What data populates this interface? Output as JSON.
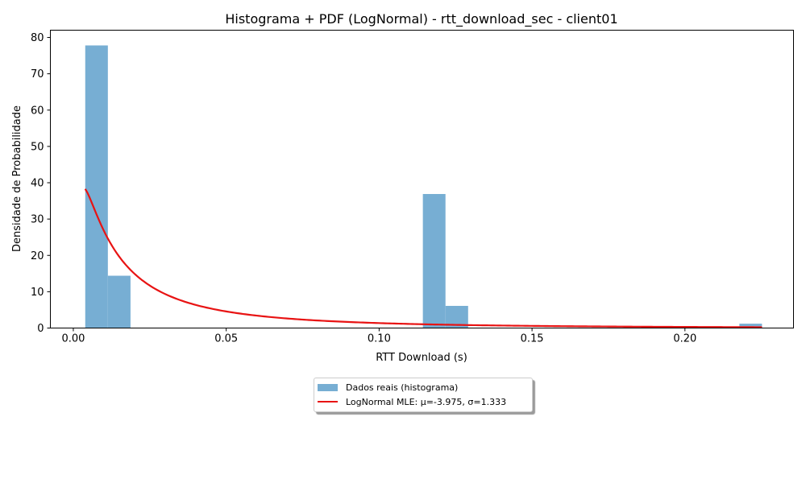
{
  "chart_data": {
    "type": "bar",
    "title": "Histograma + PDF (LogNormal) - rtt_download_sec - client01",
    "xlabel": "RTT Download (s)",
    "ylabel": "Densidade de Probabilidade",
    "xlim": [
      -0.0075,
      0.2355
    ],
    "ylim": [
      0,
      82
    ],
    "x_ticks": [
      0.0,
      0.05,
      0.1,
      0.15,
      0.2
    ],
    "x_tick_labels": [
      "0.00",
      "0.05",
      "0.10",
      "0.15",
      "0.20"
    ],
    "y_ticks": [
      0,
      10,
      20,
      30,
      40,
      50,
      60,
      70,
      80
    ],
    "y_tick_labels": [
      "0",
      "10",
      "20",
      "30",
      "40",
      "50",
      "60",
      "70",
      "80"
    ],
    "grid": false,
    "legend_position": "bottom-center (below axes)",
    "series": [
      {
        "kind": "histogram",
        "name": "Dados reais (histograma)",
        "color": "#77aed3",
        "bins": [
          {
            "x0": 0.0039,
            "x1": 0.0113,
            "density": 77.8
          },
          {
            "x0": 0.0113,
            "x1": 0.0187,
            "density": 14.4
          },
          {
            "x0": 0.1143,
            "x1": 0.1217,
            "density": 36.9
          },
          {
            "x0": 0.1217,
            "x1": 0.1291,
            "density": 6.1
          },
          {
            "x0": 0.2178,
            "x1": 0.2252,
            "density": 1.2
          }
        ]
      },
      {
        "kind": "line",
        "name": "LogNormal MLE: μ=-3.975, σ=1.333",
        "color": "#e81313",
        "mu": -3.975,
        "sigma": 1.333,
        "x_range": [
          0.0039,
          0.2252
        ]
      }
    ]
  }
}
